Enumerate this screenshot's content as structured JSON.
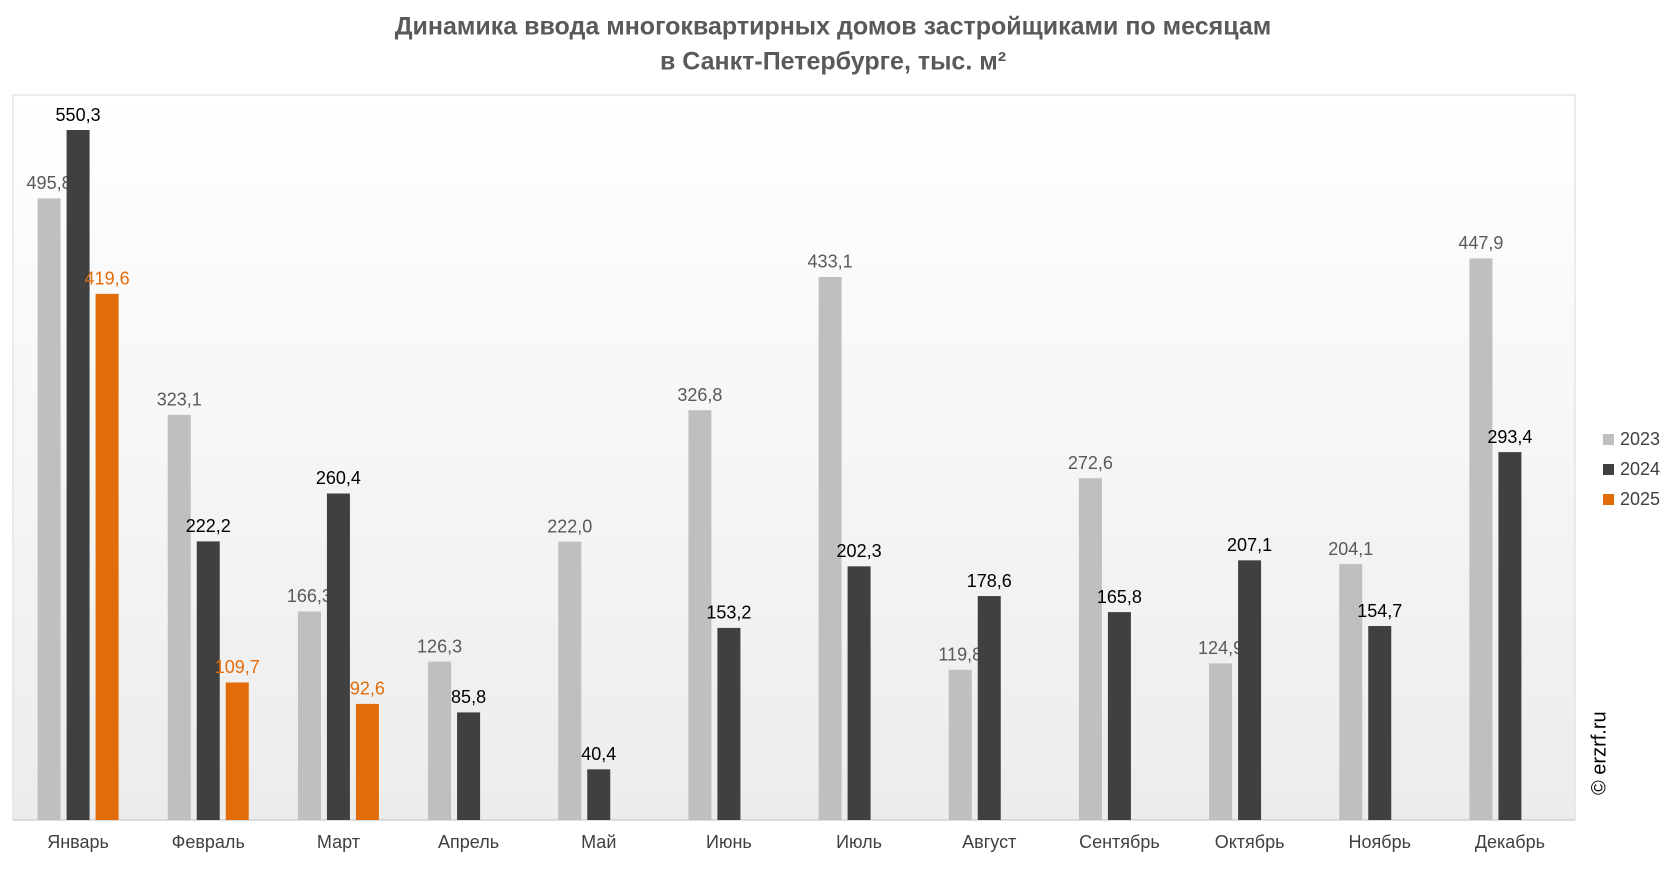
{
  "chart_data": {
    "type": "bar",
    "title": [
      "Динамика ввода многоквартирных домов застройщиками по месяцам",
      "в Санкт-Петербурге, тыс. м²"
    ],
    "categories": [
      "Январь",
      "Февраль",
      "Март",
      "Апрель",
      "Май",
      "Июнь",
      "Июль",
      "Август",
      "Сентябрь",
      "Октябрь",
      "Ноябрь",
      "Декабрь"
    ],
    "series": [
      {
        "name": "2023",
        "color": "#bfbfbf",
        "label_color": "#595959",
        "values": [
          495.8,
          323.1,
          166.3,
          126.3,
          222.0,
          326.8,
          433.1,
          119.8,
          272.6,
          124.9,
          204.1,
          447.9
        ],
        "value_labels": [
          "495,8",
          "323,1",
          "166,3",
          "126,3",
          "222,0",
          "326,8",
          "433,1",
          "119,8",
          "272,6",
          "124,9",
          "204,1",
          "447,9"
        ]
      },
      {
        "name": "2024",
        "color": "#404040",
        "label_color": "#000000",
        "values": [
          550.3,
          222.2,
          260.4,
          85.8,
          40.4,
          153.2,
          202.3,
          178.6,
          165.8,
          207.1,
          154.7,
          293.4
        ],
        "value_labels": [
          "550,3",
          "222,2",
          "260,4",
          "85,8",
          "40,4",
          "153,2",
          "202,3",
          "178,6",
          "165,8",
          "207,1",
          "154,7",
          "293,4"
        ]
      },
      {
        "name": "2025",
        "color": "#e36c0a",
        "label_color": "#e36c0a",
        "values": [
          419.6,
          109.7,
          92.6,
          null,
          null,
          null,
          null,
          null,
          null,
          null,
          null,
          null
        ],
        "value_labels": [
          "419,6",
          "109,7",
          "92,6",
          null,
          null,
          null,
          null,
          null,
          null,
          null,
          null,
          null
        ]
      }
    ],
    "legend": "right",
    "watermark": "© erzrf.ru"
  }
}
